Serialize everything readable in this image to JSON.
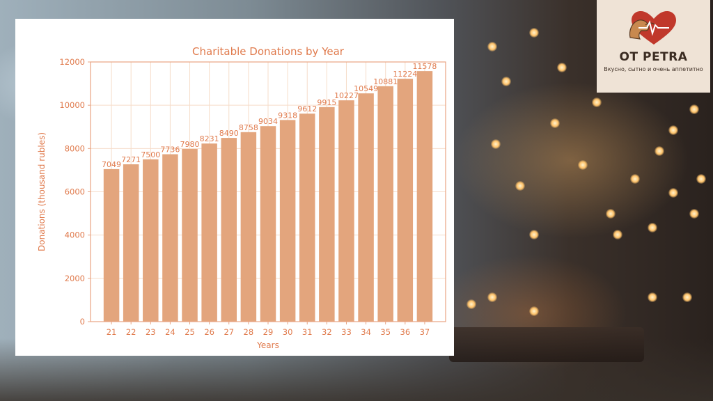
{
  "logo": {
    "title": "OT PETRA",
    "tagline": "Вкусно, сытно и очень аппетитно",
    "colors": {
      "heart": "#c0382b",
      "arm": "#c8894f",
      "text": "#3b2c22"
    }
  },
  "chart_data": {
    "type": "bar",
    "title": "Charitable Donations by Year",
    "xlabel": "Years",
    "ylabel": "Donations (thousand rubles)",
    "categories": [
      "21",
      "22",
      "23",
      "24",
      "25",
      "26",
      "27",
      "28",
      "29",
      "30",
      "31",
      "32",
      "33",
      "34",
      "35",
      "36",
      "37"
    ],
    "values": [
      7049,
      7271,
      7500,
      7736,
      7980,
      8231,
      8490,
      8758,
      9034,
      9318,
      9612,
      9915,
      10227,
      10549,
      10881,
      11224,
      11578
    ],
    "value_labels": [
      "7049",
      "7271",
      "7500",
      "7736",
      "7980",
      "8231",
      "8490",
      "8758",
      "9034",
      "9318",
      "9612",
      "9915",
      "10227",
      "10549",
      "10881",
      "11224",
      "11578"
    ],
    "yticks": [
      0,
      2000,
      4000,
      6000,
      8000,
      10000,
      12000
    ],
    "ylim": [
      0,
      12000
    ],
    "grid": true,
    "colors": {
      "bar": "#e3a57d",
      "text": "#e07a4c",
      "grid": "#f6dcc9",
      "axis": "#e8a483"
    }
  }
}
